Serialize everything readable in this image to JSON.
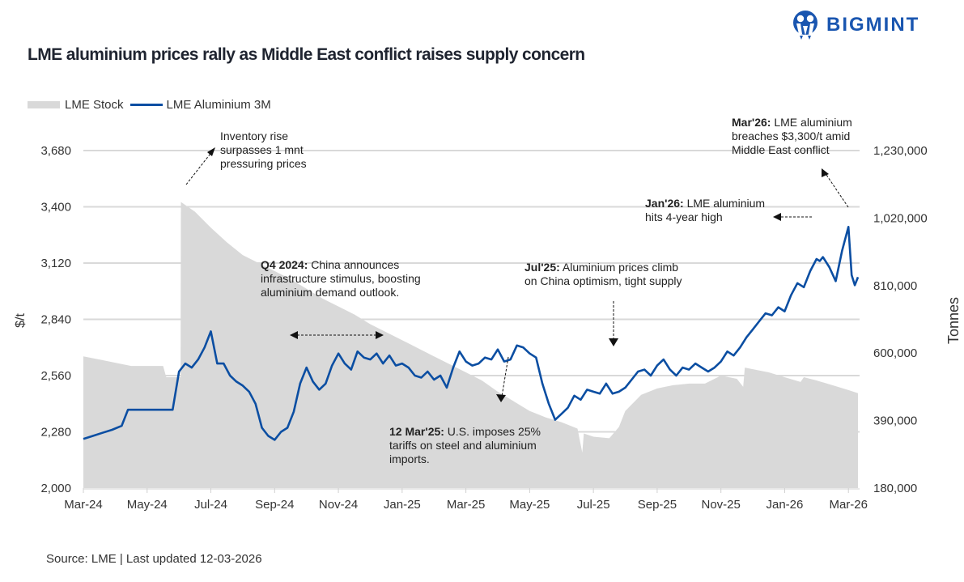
{
  "brand": {
    "name": "BIGMINT",
    "icon": "bigmint-logo-icon",
    "color": "#1a56b0"
  },
  "chart_data": {
    "type": "line",
    "title": "LME aluminium prices rally as Middle East conflict raises supply concern",
    "legend": {
      "placement": "top-left",
      "entries": [
        "LME Stock",
        "LME Aluminium 3M"
      ]
    },
    "xlabel": "",
    "x_ticks": [
      "Mar-24",
      "May-24",
      "Jul-24",
      "Sep-24",
      "Nov-24",
      "Jan-25",
      "Mar-25",
      "May-25",
      "Jul-25",
      "Sep-25",
      "Nov-25",
      "Jan-26",
      "Mar-26"
    ],
    "x_range": [
      "2024-03-01",
      "2026-03-12"
    ],
    "y_left": {
      "label": "$/t",
      "range": [
        2000,
        3680
      ],
      "ticks": [
        "2,000",
        "2,280",
        "2,560",
        "2,840",
        "3,120",
        "3,400",
        "3,680"
      ],
      "tick_values": [
        2000,
        2280,
        2560,
        2840,
        3120,
        3400,
        3680
      ]
    },
    "y_right": {
      "label": "Tonnes",
      "range": [
        180000,
        1230000
      ],
      "ticks": [
        "180,000",
        "390,000",
        "600,000",
        "810,000",
        "1,020,000",
        "1,230,000"
      ],
      "tick_values": [
        180000,
        390000,
        600000,
        810000,
        1020000,
        1230000
      ]
    },
    "grid": true,
    "colors": {
      "stock": "#d9d9d9",
      "price": "#0b4ea2",
      "grid": "#d9d9d9"
    },
    "series": [
      {
        "name": "LME Stock",
        "type": "area",
        "axis": "right",
        "x_months": [
          0,
          0.5,
          1,
          1.5,
          2,
          2.5,
          2.6,
          3.05,
          3.06,
          3.5,
          4,
          4.5,
          5,
          5.5,
          6,
          6.5,
          7,
          7.5,
          8,
          8.5,
          9,
          9.5,
          10,
          10.5,
          11,
          11.5,
          12,
          12.5,
          13,
          13.5,
          14,
          14.5,
          15,
          15.5,
          15.65,
          15.7,
          16,
          16.5,
          16.8,
          17,
          17.5,
          18,
          18.5,
          19,
          19.5,
          20,
          20.5,
          20.7,
          20.75,
          21,
          21.5,
          22,
          22.5,
          22.6,
          23,
          23.5,
          24,
          24.3
        ],
        "values": [
          590000,
          580000,
          570000,
          560000,
          560000,
          560000,
          525000,
          525000,
          1070000,
          1040000,
          990000,
          945000,
          905000,
          880000,
          855000,
          830000,
          800000,
          770000,
          745000,
          720000,
          690000,
          665000,
          640000,
          615000,
          590000,
          565000,
          540000,
          515000,
          480000,
          450000,
          420000,
          400000,
          385000,
          365000,
          290000,
          350000,
          340000,
          335000,
          370000,
          420000,
          470000,
          490000,
          500000,
          505000,
          505000,
          530000,
          520000,
          495000,
          555000,
          550000,
          540000,
          525000,
          510000,
          525000,
          515000,
          500000,
          485000,
          475000
        ]
      },
      {
        "name": "LME Aluminium 3M",
        "type": "line",
        "axis": "left",
        "x_months": [
          0,
          0.3,
          0.6,
          0.9,
          1.2,
          1.4,
          1.6,
          1.9,
          2.2,
          2.5,
          2.8,
          3.0,
          3.2,
          3.4,
          3.6,
          3.8,
          4.0,
          4.2,
          4.4,
          4.6,
          4.8,
          5.0,
          5.2,
          5.4,
          5.6,
          5.8,
          6.0,
          6.2,
          6.4,
          6.6,
          6.8,
          7.0,
          7.2,
          7.4,
          7.6,
          7.8,
          8.0,
          8.2,
          8.4,
          8.6,
          8.8,
          9.0,
          9.2,
          9.4,
          9.6,
          9.8,
          10.0,
          10.2,
          10.4,
          10.6,
          10.8,
          11.0,
          11.2,
          11.4,
          11.6,
          11.8,
          12.0,
          12.2,
          12.4,
          12.6,
          12.8,
          13.0,
          13.2,
          13.4,
          13.6,
          13.8,
          14.0,
          14.2,
          14.4,
          14.6,
          14.8,
          15.0,
          15.2,
          15.4,
          15.6,
          15.8,
          16.0,
          16.2,
          16.4,
          16.6,
          16.8,
          17.0,
          17.2,
          17.4,
          17.6,
          17.8,
          18.0,
          18.2,
          18.4,
          18.6,
          18.8,
          19.0,
          19.2,
          19.4,
          19.6,
          19.8,
          20.0,
          20.2,
          20.4,
          20.6,
          20.8,
          21.0,
          21.2,
          21.4,
          21.6,
          21.8,
          22.0,
          22.2,
          22.4,
          22.6,
          22.8,
          23.0,
          23.1,
          23.2,
          23.4,
          23.6,
          23.8,
          24.0,
          24.1,
          24.2,
          24.3
        ],
        "values": [
          2245,
          2260,
          2275,
          2290,
          2310,
          2390,
          2390,
          2390,
          2390,
          2390,
          2390,
          2580,
          2620,
          2600,
          2640,
          2700,
          2780,
          2620,
          2620,
          2560,
          2530,
          2510,
          2480,
          2420,
          2300,
          2260,
          2240,
          2280,
          2300,
          2380,
          2520,
          2600,
          2530,
          2490,
          2520,
          2610,
          2670,
          2620,
          2590,
          2680,
          2650,
          2640,
          2670,
          2620,
          2660,
          2610,
          2620,
          2600,
          2560,
          2550,
          2580,
          2540,
          2560,
          2500,
          2600,
          2680,
          2630,
          2610,
          2620,
          2650,
          2640,
          2690,
          2630,
          2640,
          2710,
          2700,
          2670,
          2650,
          2520,
          2420,
          2340,
          2370,
          2400,
          2460,
          2440,
          2490,
          2480,
          2470,
          2520,
          2470,
          2480,
          2500,
          2540,
          2580,
          2590,
          2560,
          2610,
          2640,
          2590,
          2560,
          2600,
          2590,
          2620,
          2600,
          2580,
          2600,
          2630,
          2680,
          2660,
          2700,
          2750,
          2790,
          2830,
          2870,
          2860,
          2900,
          2880,
          2960,
          3020,
          3000,
          3080,
          3140,
          3130,
          3150,
          3100,
          3030,
          3180,
          3300,
          3060,
          3010,
          3050,
          3020,
          3040,
          3080,
          3180,
          3380,
          3400,
          3410,
          3440
        ]
      }
    ],
    "annotations": [
      {
        "bold": "",
        "text": "Inventory rise surpasses 1 mnt pressuring prices"
      },
      {
        "bold": "Q4 2024:",
        "text": " China announces infrastructure stimulus, boosting aluminium demand outlook."
      },
      {
        "bold": "12 Mar'25:",
        "text": " U.S. imposes 25% tariffs on steel and aluminium imports."
      },
      {
        "bold": "Jul'25:",
        "text": " Aluminium prices climb on China optimism, tight supply"
      },
      {
        "bold": "Jan'26:",
        "text": " LME aluminium hits 4-year high"
      },
      {
        "bold": "Mar'26:",
        "text": " LME aluminium breaches $3,300/t amid Middle East conflict"
      }
    ]
  },
  "footer": {
    "source": "Source: LME | Last updated 12-03-2026"
  }
}
